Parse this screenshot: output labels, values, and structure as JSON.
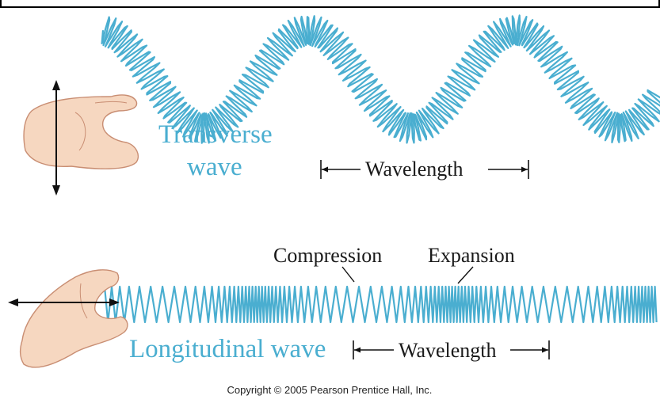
{
  "transverse": {
    "label_line1": "Transverse",
    "label_line2": "wave",
    "wavelength_label": "Wavelength"
  },
  "longitudinal": {
    "label": "Longitudinal wave",
    "wavelength_label": "Wavelength",
    "compression_label": "Compression",
    "expansion_label": "Expansion"
  },
  "copyright": "Copyright © 2005 Pearson Prentice Hall, Inc.",
  "colors": {
    "spring": "#4aaed0",
    "text_blue": "#4aaed0",
    "skin": "#f6d7c0",
    "skin_outline": "#c98e73",
    "arrow": "#111111"
  }
}
